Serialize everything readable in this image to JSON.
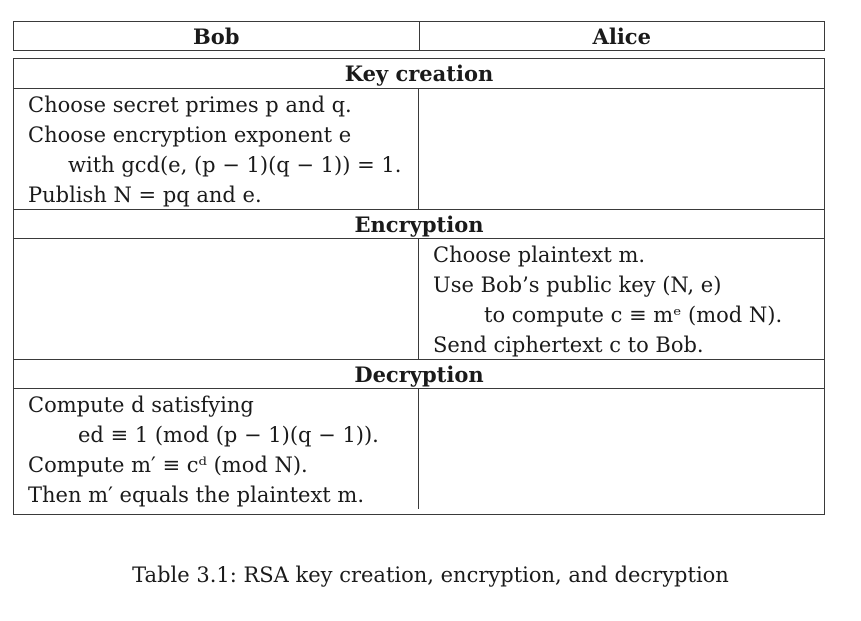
{
  "header": {
    "bob": "Bob",
    "alice": "Alice"
  },
  "sections": {
    "key_creation": {
      "title": "Key creation",
      "bob_lines": [
        "Choose secret primes p and q.",
        "Choose encryption exponent e",
        "with gcd(e, (p − 1)(q − 1)) = 1.",
        "Publish N = pq and e."
      ],
      "alice_lines": []
    },
    "encryption": {
      "title": "Encryption",
      "bob_lines": [],
      "alice_lines": [
        "Choose plaintext m.",
        "Use Bob’s public key (N, e)",
        "to compute c ≡ mᵉ (mod N).",
        "Send ciphertext c to Bob."
      ]
    },
    "decryption": {
      "title": "Decryption",
      "bob_lines": [
        "Compute d satisfying",
        "ed ≡ 1 (mod (p − 1)(q − 1)).",
        "Compute m′ ≡ cᵈ (mod N).",
        "Then m′ equals the plaintext m."
      ],
      "alice_lines": []
    }
  },
  "caption": "Table 3.1: RSA key creation, encryption, and decryption"
}
